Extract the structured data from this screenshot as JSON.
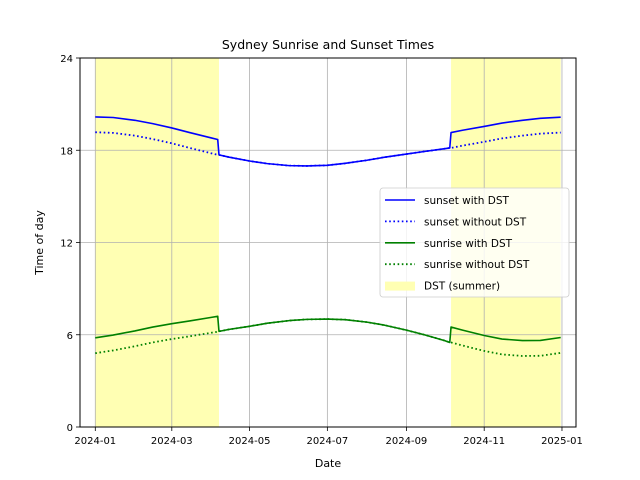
{
  "chart_data": {
    "type": "line",
    "title": "Sydney Sunrise and Sunset Times",
    "xlabel": "Date",
    "ylabel": "Time of day",
    "xlim": [
      "2023-12-20",
      "2025-01-12"
    ],
    "ylim": [
      0,
      24
    ],
    "xticks": [
      "2024-01",
      "2024-03",
      "2024-05",
      "2024-07",
      "2024-09",
      "2024-11",
      "2025-01"
    ],
    "yticks": [
      0,
      6,
      12,
      18,
      24
    ],
    "grid": true,
    "legend_position": "center-right",
    "dst_periods": [
      {
        "start": "2024-01-01",
        "end": "2024-04-07"
      },
      {
        "start": "2024-10-06",
        "end": "2024-12-31"
      }
    ],
    "x": [
      "2024-01-01",
      "2024-01-15",
      "2024-02-01",
      "2024-02-15",
      "2024-03-01",
      "2024-03-15",
      "2024-04-01",
      "2024-04-06",
      "2024-04-07",
      "2024-04-15",
      "2024-05-01",
      "2024-05-15",
      "2024-06-01",
      "2024-06-15",
      "2024-07-01",
      "2024-07-15",
      "2024-08-01",
      "2024-08-15",
      "2024-09-01",
      "2024-09-15",
      "2024-10-01",
      "2024-10-05",
      "2024-10-06",
      "2024-10-15",
      "2024-11-01",
      "2024-11-15",
      "2024-12-01",
      "2024-12-15",
      "2024-12-31"
    ],
    "series": [
      {
        "name": "sunset with DST",
        "color": "#0000ff",
        "style": "solid",
        "values": [
          20.17,
          20.13,
          19.95,
          19.73,
          19.45,
          19.15,
          18.8,
          18.7,
          17.7,
          17.55,
          17.3,
          17.13,
          17.0,
          16.98,
          17.02,
          17.15,
          17.35,
          17.55,
          17.75,
          17.92,
          18.1,
          18.15,
          19.15,
          19.3,
          19.55,
          19.77,
          19.95,
          20.08,
          20.15
        ]
      },
      {
        "name": "sunset without DST",
        "color": "#0000ff",
        "style": "dotted",
        "values": [
          19.17,
          19.13,
          18.95,
          18.73,
          18.45,
          18.15,
          17.8,
          17.7,
          17.7,
          17.55,
          17.3,
          17.13,
          17.0,
          16.98,
          17.02,
          17.15,
          17.35,
          17.55,
          17.75,
          17.92,
          18.1,
          18.15,
          18.15,
          18.3,
          18.55,
          18.77,
          18.95,
          19.08,
          19.15
        ]
      },
      {
        "name": "sunrise with DST",
        "color": "#008000",
        "style": "solid",
        "values": [
          5.8,
          5.98,
          6.25,
          6.5,
          6.72,
          6.9,
          7.13,
          7.2,
          6.22,
          6.35,
          6.55,
          6.75,
          6.92,
          7.0,
          7.02,
          6.98,
          6.82,
          6.62,
          6.3,
          6.0,
          5.62,
          5.5,
          6.5,
          6.3,
          5.95,
          5.72,
          5.62,
          5.63,
          5.82
        ]
      },
      {
        "name": "sunrise without DST",
        "color": "#008000",
        "style": "dotted",
        "values": [
          4.8,
          4.98,
          5.25,
          5.5,
          5.72,
          5.9,
          6.13,
          6.2,
          6.22,
          6.35,
          6.55,
          6.75,
          6.92,
          7.0,
          7.02,
          6.98,
          6.82,
          6.62,
          6.3,
          6.0,
          5.62,
          5.5,
          5.5,
          5.3,
          4.95,
          4.72,
          4.62,
          4.63,
          4.82
        ]
      }
    ],
    "legend": [
      {
        "label": "sunset with DST",
        "color": "#0000ff",
        "style": "solid"
      },
      {
        "label": "sunset without DST",
        "color": "#0000ff",
        "style": "dotted"
      },
      {
        "label": "sunrise with DST",
        "color": "#008000",
        "style": "solid"
      },
      {
        "label": "sunrise without DST",
        "color": "#008000",
        "style": "dotted"
      },
      {
        "label": "DST (summer)",
        "color": "#ffffb3",
        "style": "patch"
      }
    ]
  }
}
